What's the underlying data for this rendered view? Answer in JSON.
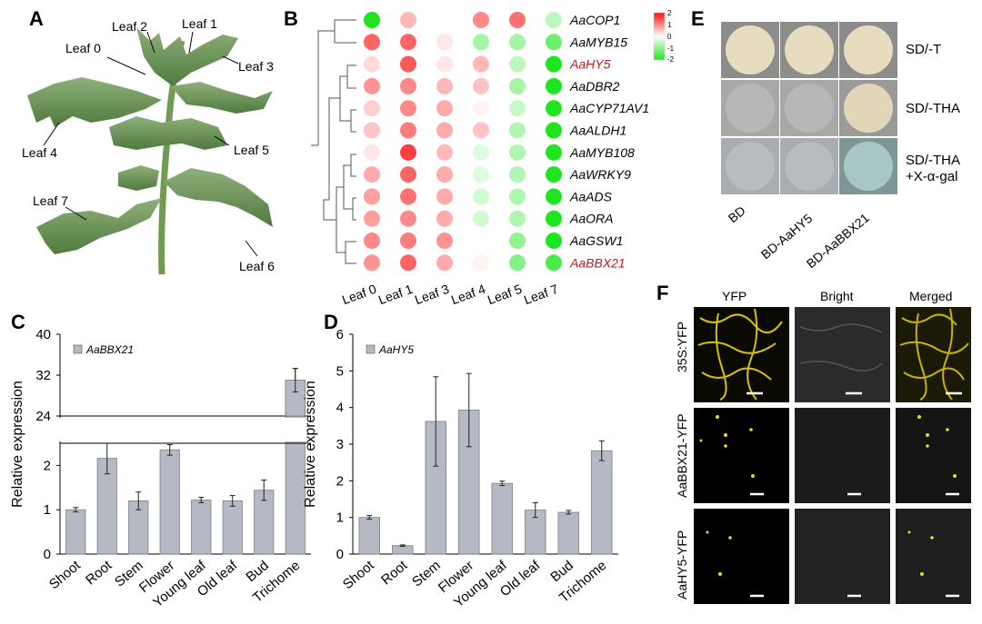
{
  "panels": {
    "a": {
      "label": "A",
      "leaves": [
        "Leaf 2",
        "Leaf 1",
        "Leaf 0",
        "Leaf 3",
        "Leaf 4",
        "Leaf 5",
        "Leaf 7",
        "Leaf 6"
      ]
    },
    "b": {
      "label": "B",
      "genes": [
        "AaCOP1",
        "AaMYB15",
        "AaHY5",
        "AaDBR2",
        "AaCYP71AV1",
        "AaALDH1",
        "AaMYB108",
        "AaWRKY9",
        "AaADS",
        "AaORA",
        "AaGSW1",
        "AaBBX21"
      ],
      "highlight_color": "#c0171b",
      "samples": [
        "Leaf 0",
        "Leaf 1",
        "Leaf 3",
        "Leaf 4",
        "Leaf 5",
        "Leaf 7"
      ],
      "scale_ticks": [
        "2",
        "1",
        "0",
        "-1",
        "-2"
      ],
      "colors": {
        "high": "#ff1010",
        "mid": "#ffffff",
        "low": "#1ee61e"
      }
    },
    "c": {
      "label": "C"
    },
    "d": {
      "label": "D"
    },
    "e": {
      "label": "E",
      "media": [
        "SD/-T",
        "SD/-THA",
        "SD/-THA\n+X-α-gal"
      ],
      "constructs": [
        "BD",
        "BD-AaHY5",
        "BD-AaBBX21"
      ]
    },
    "f": {
      "label": "F",
      "columns": [
        "YFP",
        "Bright",
        "Merged"
      ],
      "rows": [
        "35S:YFP",
        "AaBBX21-YFP",
        "AaHY5-YFP"
      ]
    }
  },
  "chart_data": [
    {
      "type": "heatmap",
      "rows": [
        "AaCOP1",
        "AaMYB15",
        "AaHY5",
        "AaDBR2",
        "AaCYP71AV1",
        "AaALDH1",
        "AaMYB108",
        "AaWRKY9",
        "AaADS",
        "AaORA",
        "AaGSW1",
        "AaBBX21"
      ],
      "columns": [
        "Leaf 0",
        "Leaf 1",
        "Leaf 3",
        "Leaf 4",
        "Leaf 5",
        "Leaf 7"
      ],
      "values": [
        [
          -2.0,
          0.6,
          0.0,
          1.0,
          1.2,
          -0.6
        ],
        [
          1.3,
          1.3,
          0.2,
          -0.8,
          -0.8,
          -1.3
        ],
        [
          0.3,
          1.4,
          0.2,
          0.6,
          -0.6,
          -2.0
        ],
        [
          0.9,
          1.0,
          0.6,
          0.5,
          -0.8,
          -2.0
        ],
        [
          0.4,
          1.0,
          0.7,
          0.1,
          -0.5,
          -2.0
        ],
        [
          0.5,
          1.1,
          0.7,
          0.5,
          -0.7,
          -2.0
        ],
        [
          0.2,
          1.6,
          0.6,
          -0.3,
          -0.7,
          -2.0
        ],
        [
          0.7,
          1.3,
          0.7,
          -0.3,
          -0.7,
          -2.0
        ],
        [
          0.8,
          1.2,
          0.7,
          -0.4,
          -0.7,
          -2.0
        ],
        [
          0.8,
          1.0,
          0.7,
          -0.4,
          -0.7,
          -2.0
        ],
        [
          1.0,
          1.1,
          0.9,
          0.0,
          -1.0,
          -2.0
        ],
        [
          0.9,
          1.3,
          0.7,
          0.1,
          -1.1,
          -1.6
        ]
      ],
      "scale": [
        -2,
        2
      ]
    },
    {
      "type": "bar",
      "legend": "AaBBX21",
      "ylabel": "Relative expression",
      "categories": [
        "Shoot",
        "Root",
        "Stem",
        "Flower",
        "Young leaf",
        "Old leaf",
        "Bud",
        "Trichome"
      ],
      "values": [
        1.0,
        2.16,
        1.2,
        2.35,
        1.22,
        1.2,
        1.44,
        31.0
      ],
      "errors": [
        0.05,
        0.35,
        0.2,
        0.12,
        0.06,
        0.12,
        0.23,
        2.3
      ],
      "broken_axis": {
        "lower_ticks": [
          "0",
          "1",
          "2"
        ],
        "upper_ticks": [
          "24",
          "32",
          "40"
        ],
        "upper_range": [
          24,
          40
        ]
      },
      "bar_color": "#b4b9c4"
    },
    {
      "type": "bar",
      "legend": "AaHY5",
      "ylabel": "Relative expression",
      "categories": [
        "Shoot",
        "Root",
        "Stem",
        "Flower",
        "Young leaf",
        "Old leaf",
        "Bud",
        "Trichome"
      ],
      "values": [
        1.0,
        0.23,
        3.62,
        3.93,
        1.93,
        1.2,
        1.14,
        2.82
      ],
      "errors": [
        0.05,
        0.02,
        1.22,
        1.0,
        0.06,
        0.2,
        0.05,
        0.27
      ],
      "yticks": [
        0,
        1,
        2,
        3,
        4,
        5,
        6
      ],
      "ylim": [
        0,
        6
      ],
      "bar_color": "#b4b9c4"
    }
  ]
}
